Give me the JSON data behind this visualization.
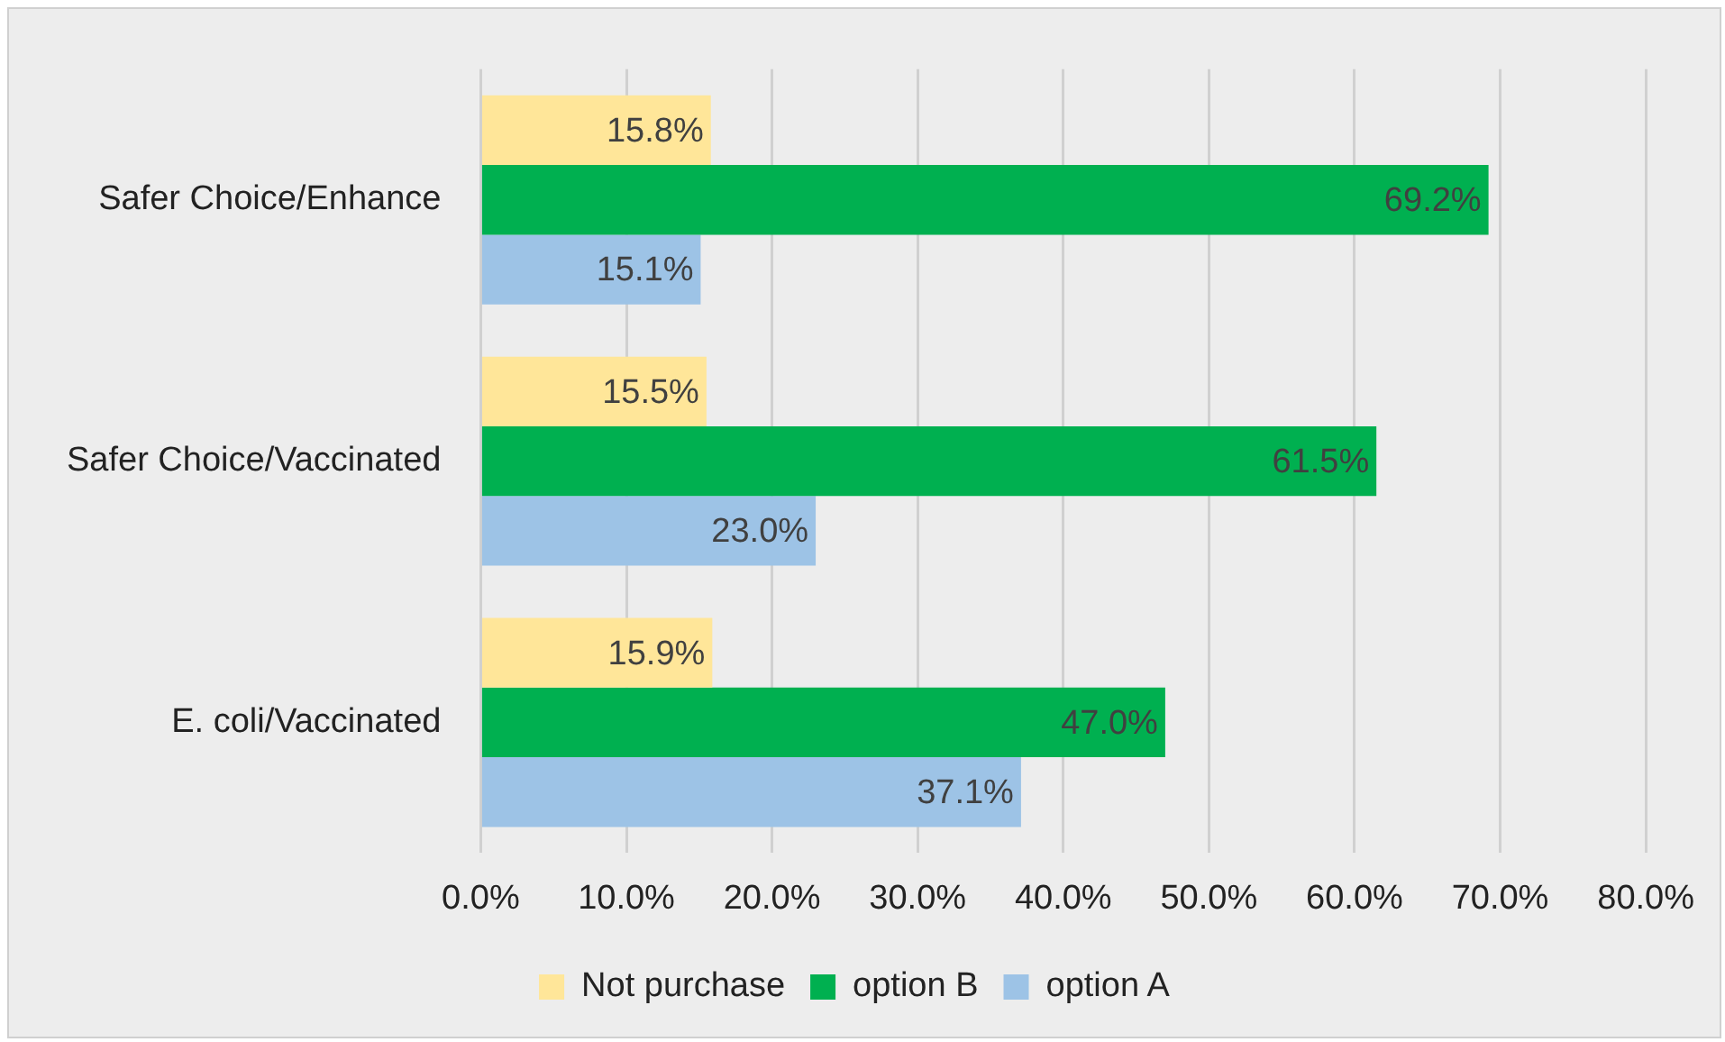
{
  "chart_data": {
    "type": "bar",
    "orientation": "horizontal",
    "categories": [
      "Safer Choice/Enhance",
      "Safer Choice/Vaccinated",
      "E. coli/Vaccinated"
    ],
    "series": [
      {
        "name": "Not purchase",
        "color": "#ffe699",
        "values": [
          15.8,
          15.5,
          15.9
        ],
        "value_labels": [
          "15.8%",
          "15.5%",
          "15.9%"
        ]
      },
      {
        "name": "option B",
        "color": "#00b050",
        "values": [
          69.2,
          61.5,
          47.0
        ],
        "value_labels": [
          "69.2%",
          "61.5%",
          "47.0%"
        ]
      },
      {
        "name": "option A",
        "color": "#9dc3e6",
        "values": [
          15.1,
          23.0,
          37.1
        ],
        "value_labels": [
          "15.1%",
          "23.0%",
          "37.1%"
        ]
      }
    ],
    "xlim": [
      0,
      80
    ],
    "xticks": [
      {
        "value": 0,
        "label": "0.0%"
      },
      {
        "value": 10,
        "label": "10.0%"
      },
      {
        "value": 20,
        "label": "20.0%"
      },
      {
        "value": 30,
        "label": "30.0%"
      },
      {
        "value": 40,
        "label": "40.0%"
      },
      {
        "value": 50,
        "label": "50.0%"
      },
      {
        "value": 60,
        "label": "60.0%"
      },
      {
        "value": 70,
        "label": "70.0%"
      },
      {
        "value": 80,
        "label": "80.0%"
      }
    ],
    "grid": "x",
    "legend": "bottom"
  }
}
